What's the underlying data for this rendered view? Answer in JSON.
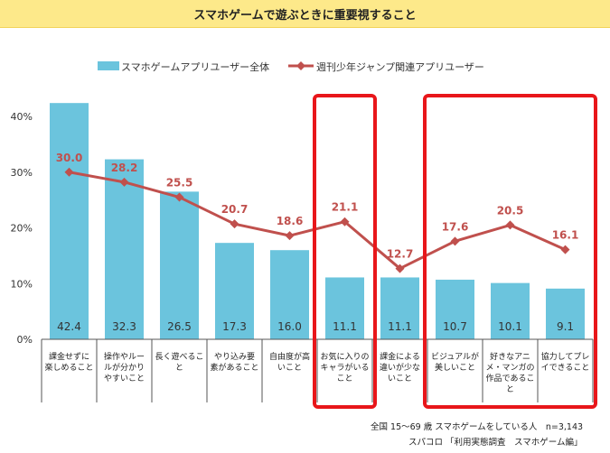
{
  "header": {
    "title": "スマホゲームで遊ぶときに重要視すること"
  },
  "colors": {
    "bar": "#6bc4dd",
    "line": "#c0504d",
    "banner": "#fde98a",
    "highlight": "#e8161a"
  },
  "chart_data": {
    "type": "bar+line",
    "title": "スマホゲームで遊ぶときに重要視すること",
    "ylim": [
      0,
      40
    ],
    "yticks": [
      "0%",
      "10%",
      "20%",
      "30%",
      "40%"
    ],
    "categories": [
      [
        "課金せずに",
        "楽しめること"
      ],
      [
        "操作やルー",
        "ルが分かり",
        "やすいこと"
      ],
      [
        "長く遊べるこ",
        "と"
      ],
      [
        "やり込み要",
        "素があること"
      ],
      [
        "自由度が高",
        "いこと"
      ],
      [
        "お気に入りの",
        "キャラがいる",
        "こと"
      ],
      [
        "課金による",
        "違いが少な",
        "いこと"
      ],
      [
        "ビジュアルが",
        "美しいこと"
      ],
      [
        "好きなアニ",
        "メ・マンガの",
        "作品であるこ",
        "と"
      ],
      [
        "協力してプレ",
        "イできること"
      ]
    ],
    "series": [
      {
        "name": "スマホゲームアプリユーザー全体",
        "type": "bar",
        "values": [
          42.4,
          32.3,
          26.5,
          17.3,
          16.0,
          11.1,
          11.1,
          10.7,
          10.1,
          9.1
        ],
        "labels": [
          "42.4",
          "32.3",
          "26.5",
          "17.3",
          "16.0",
          "11.1",
          "11.1",
          "10.7",
          "10.1",
          "9.1"
        ]
      },
      {
        "name": "週刊少年ジャンプ関連アプリユーザー",
        "type": "line",
        "values": [
          30.0,
          28.2,
          25.5,
          20.7,
          18.6,
          21.1,
          12.7,
          17.6,
          20.5,
          16.1
        ],
        "labels": [
          "30.0",
          "28.2",
          "25.5",
          "20.7",
          "18.6",
          "21.1",
          "12.7",
          "17.6",
          "20.5",
          "16.1"
        ]
      }
    ],
    "highlight_groups": [
      [
        5,
        5
      ],
      [
        7,
        9
      ]
    ]
  },
  "footnote": {
    "sample": "全国 15〜69 歳 スマホゲームをしている人　n=3,143",
    "source": "スパコロ 「利用実態調査　スマホゲーム編」"
  }
}
